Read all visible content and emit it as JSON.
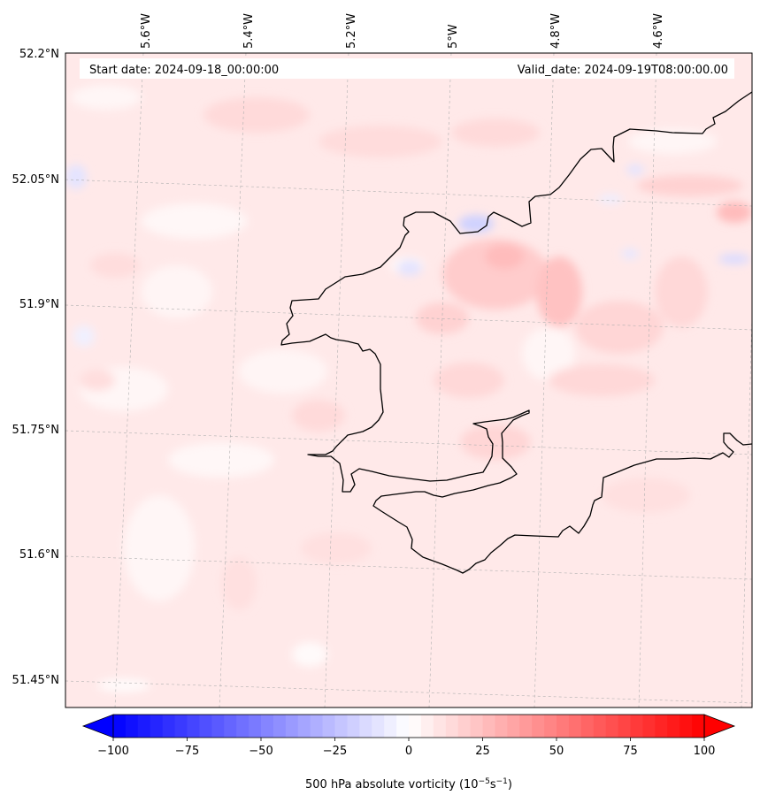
{
  "map": {
    "start_date": "Start date: 2024-09-18_00:00:00",
    "valid_date": "Valid_date: 2024-09-19T08:00:00.00",
    "lon_labels": [
      "5.6°W",
      "5.4°W",
      "5.2°W",
      "5°W",
      "4.8°W",
      "4.6°W"
    ],
    "lat_labels": [
      "52.2°N",
      "52.05°N",
      "51.9°N",
      "51.75°N",
      "51.6°N",
      "51.45°N"
    ],
    "background_color": "#ffe9e9"
  },
  "colorbar": {
    "ticks": [
      "−100",
      "−75",
      "−50",
      "−25",
      "0",
      "25",
      "50",
      "75",
      "100"
    ],
    "tick_values": [
      -100,
      -75,
      -50,
      -25,
      0,
      25,
      50,
      75,
      100
    ],
    "range": [
      -100,
      100
    ],
    "levels": 48,
    "color_min": "#0000ff",
    "color_mid": "#ffffff",
    "color_max": "#ff0000",
    "label_main": "500 hPa absolute vorticity (10",
    "label_exp1": "−5",
    "label_mid": "s",
    "label_exp2": "−1",
    "label_end": ")"
  }
}
